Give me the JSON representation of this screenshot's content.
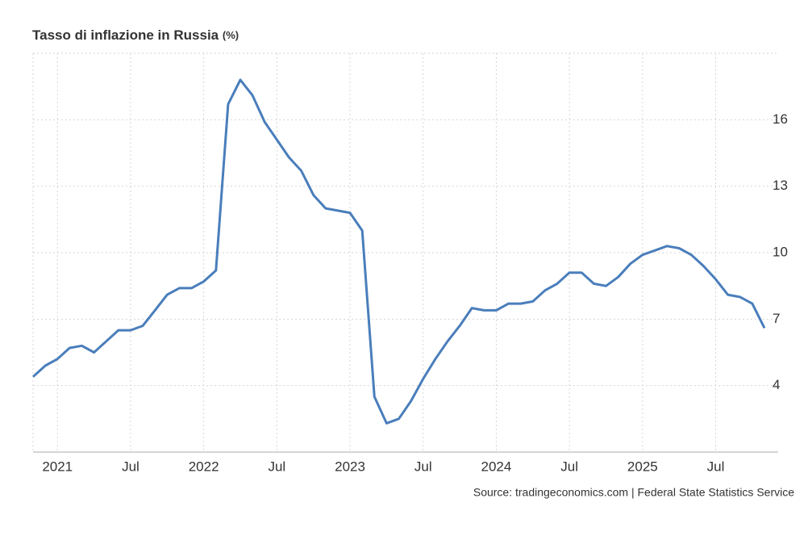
{
  "chart_data": {
    "type": "line",
    "title": "Tasso di inflazione in Russia",
    "unit": "(%)",
    "source": "Source: tradingeconomics.com | Federal State Statistics Service",
    "x": [
      "2020-11",
      "2020-12",
      "2021-01",
      "2021-02",
      "2021-03",
      "2021-04",
      "2021-05",
      "2021-06",
      "2021-07",
      "2021-08",
      "2021-09",
      "2021-10",
      "2021-11",
      "2021-12",
      "2022-01",
      "2022-02",
      "2022-03",
      "2022-04",
      "2022-05",
      "2022-06",
      "2022-07",
      "2022-08",
      "2022-09",
      "2022-10",
      "2022-11",
      "2022-12",
      "2023-01",
      "2023-02",
      "2023-03",
      "2023-04",
      "2023-05",
      "2023-06",
      "2023-07",
      "2023-08",
      "2023-09",
      "2023-10",
      "2023-11",
      "2023-12",
      "2024-01",
      "2024-02",
      "2024-03",
      "2024-04",
      "2024-05",
      "2024-06",
      "2024-07",
      "2024-08",
      "2024-09",
      "2024-10",
      "2024-11",
      "2024-12",
      "2025-01",
      "2025-02",
      "2025-03",
      "2025-04",
      "2025-05",
      "2025-06",
      "2025-07",
      "2025-08",
      "2025-09",
      "2025-10",
      "2025-11"
    ],
    "series": [
      {
        "name": "Tasso di inflazione",
        "color": "#4a7ebb",
        "values": [
          4.4,
          4.9,
          5.2,
          5.7,
          5.8,
          5.5,
          6.0,
          6.5,
          6.5,
          6.7,
          7.4,
          8.1,
          8.4,
          8.4,
          8.7,
          9.2,
          16.7,
          17.8,
          17.1,
          15.9,
          15.1,
          14.3,
          13.7,
          12.6,
          12.0,
          11.9,
          11.8,
          11.0,
          3.5,
          2.3,
          2.5,
          3.3,
          4.3,
          5.2,
          6.0,
          6.7,
          7.5,
          7.4,
          7.4,
          7.7,
          7.7,
          7.8,
          8.3,
          8.6,
          9.1,
          9.1,
          8.6,
          8.5,
          8.9,
          9.5,
          9.9,
          10.1,
          10.3,
          10.2,
          9.9,
          9.4,
          8.8,
          8.1,
          8.0,
          7.7,
          6.6
        ]
      }
    ],
    "xlim": [
      "2020-11",
      "2025-11"
    ],
    "xticks": [
      {
        "value": "2021-01",
        "label": "2021"
      },
      {
        "value": "2021-07",
        "label": "Jul"
      },
      {
        "value": "2022-01",
        "label": "2022"
      },
      {
        "value": "2022-07",
        "label": "Jul"
      },
      {
        "value": "2023-01",
        "label": "2023"
      },
      {
        "value": "2023-07",
        "label": "Jul"
      },
      {
        "value": "2024-01",
        "label": "2024"
      },
      {
        "value": "2024-07",
        "label": "Jul"
      },
      {
        "value": "2025-01",
        "label": "2025"
      },
      {
        "value": "2025-07",
        "label": "Jul"
      }
    ],
    "ylim": [
      1,
      19
    ],
    "yticks": [
      4,
      7,
      10,
      13,
      16
    ],
    "grid": true
  }
}
